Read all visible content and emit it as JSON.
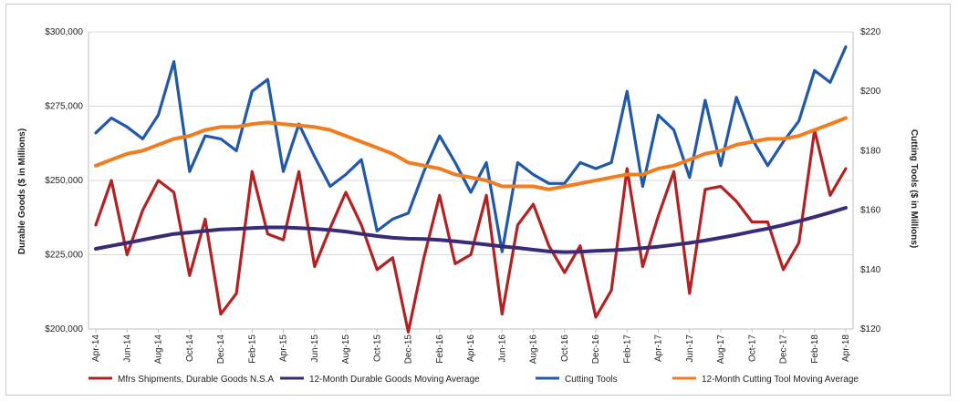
{
  "chart_data": {
    "type": "line",
    "title": "",
    "ylabel_left": "Durable Goods ($ in Millions)",
    "ylabel_right": "Cutting Tools ($ in Millions)",
    "ylim_left": [
      200000,
      300000
    ],
    "ylim_right": [
      120,
      220
    ],
    "yticks_left": [
      "$200,000",
      "$225,000",
      "$250,000",
      "$275,000",
      "$300,000"
    ],
    "yticks_right": [
      "$120",
      "$140",
      "$160",
      "$180",
      "$200",
      "$220"
    ],
    "grid": true,
    "legend_position": "bottom",
    "categories": [
      "Apr-14",
      "May-14",
      "Jun-14",
      "Jul-14",
      "Aug-14",
      "Sep-14",
      "Oct-14",
      "Nov-14",
      "Dec-14",
      "Jan-15",
      "Feb-15",
      "Mar-15",
      "Apr-15",
      "May-15",
      "Jun-15",
      "Jul-15",
      "Aug-15",
      "Sep-15",
      "Oct-15",
      "Nov-15",
      "Dec-15",
      "Jan-16",
      "Feb-16",
      "Mar-16",
      "Apr-16",
      "May-16",
      "Jun-16",
      "Jul-16",
      "Aug-16",
      "Sep-16",
      "Oct-16",
      "Nov-16",
      "Dec-16",
      "Jan-17",
      "Feb-17",
      "Mar-17",
      "Apr-17",
      "May-17",
      "Jun-17",
      "Jul-17",
      "Aug-17",
      "Sep-17",
      "Oct-17",
      "Nov-17",
      "Dec-17",
      "Jan-18",
      "Feb-18",
      "Mar-18",
      "Apr-18"
    ],
    "tick_labels": [
      "Apr-14",
      "Jun-14",
      "Aug-14",
      "Oct-14",
      "Dec-14",
      "Feb-15",
      "Apr-15",
      "Jun-15",
      "Aug-15",
      "Oct-15",
      "Dec-15",
      "Feb-16",
      "Apr-16",
      "Jun-16",
      "Aug-16",
      "Oct-16",
      "Dec-16",
      "Feb-17",
      "Apr-17",
      "Jun-17",
      "Aug-17",
      "Oct-17",
      "Dec-17",
      "Feb-18",
      "Apr-18"
    ],
    "series": [
      {
        "name": "Mfrs Shipments, Durable Goods N.S.A",
        "axis": "left",
        "color": "#b22222",
        "values": [
          235000,
          250000,
          225000,
          240000,
          250000,
          246000,
          218000,
          237000,
          205000,
          212000,
          253000,
          232000,
          230000,
          253000,
          221000,
          234000,
          246000,
          235000,
          220000,
          224000,
          199000,
          224000,
          245000,
          222000,
          225000,
          245000,
          205000,
          235000,
          242000,
          228000,
          219000,
          228000,
          204000,
          213000,
          254000,
          221000,
          238000,
          253000,
          212000,
          247000,
          248000,
          243000,
          236000,
          236000,
          220000,
          229000,
          267000,
          245000,
          254000
        ]
      },
      {
        "name": "12-Month Durable Goods Moving Average",
        "axis": "left",
        "color": "#3b2a78",
        "values": [
          227000,
          228000,
          229000,
          230000,
          231000,
          232000,
          232500,
          233000,
          233500,
          233700,
          234000,
          234200,
          234200,
          234000,
          233700,
          233300,
          232800,
          232000,
          231300,
          230700,
          230400,
          230300,
          230000,
          229500,
          229000,
          228400,
          227800,
          227300,
          226700,
          226100,
          225900,
          226000,
          226300,
          226500,
          226800,
          227200,
          227700,
          228300,
          229000,
          229800,
          230700,
          231700,
          232800,
          233800,
          235000,
          236300,
          237700,
          239200,
          240800
        ]
      },
      {
        "name": "Cutting Tools",
        "axis": "right",
        "color": "#2258a8",
        "values": [
          186,
          191,
          188,
          184,
          192,
          210,
          173,
          185,
          184,
          180,
          200,
          204,
          173,
          189,
          178,
          168,
          172,
          177,
          153,
          157,
          159,
          173,
          185,
          176,
          166,
          176,
          146,
          176,
          172,
          169,
          169,
          176,
          174,
          176,
          200,
          168,
          192,
          187,
          171,
          197,
          175,
          198,
          184,
          175,
          183,
          190,
          207,
          203,
          215
        ]
      },
      {
        "name": "12-Month Cutting Tool Moving Average",
        "axis": "right",
        "color": "#f07d1f",
        "values": [
          175,
          177,
          179,
          180,
          182,
          184,
          185,
          187,
          188,
          188,
          189,
          189.5,
          189,
          188.5,
          188,
          187,
          185,
          183,
          181,
          179,
          176,
          175,
          174,
          172,
          171,
          170,
          168,
          168,
          168,
          167,
          168,
          169,
          170,
          171,
          172,
          172,
          174,
          175,
          177,
          179,
          180,
          182,
          183,
          184,
          184,
          185,
          187,
          189,
          191
        ]
      }
    ]
  }
}
